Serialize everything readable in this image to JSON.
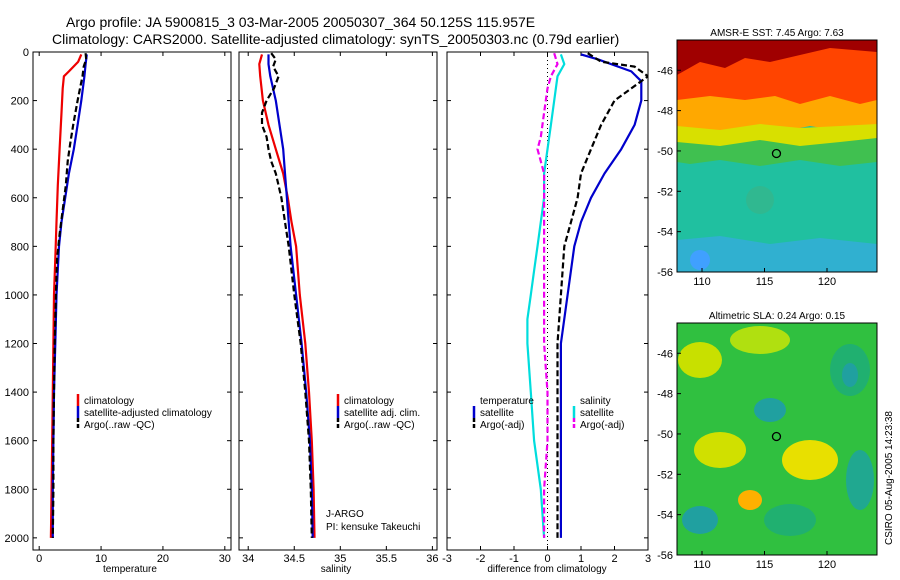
{
  "header": {
    "line1": "Argo profile: JA 5900815_3 03-Mar-2005 20050307_364 50.125S 115.957E",
    "line2": "Climatology: CARS2000. Satellite-adjusted climatology: synTS_20050303.nc (0.79d earlier)"
  },
  "side_stamp": "CSIRO 05-Aug-2005 14:23:38",
  "colors": {
    "climatology": "#ee0000",
    "satellite": "#0000cc",
    "argo": "#000000",
    "salinity_satellite": "#00dddd",
    "salinity_argo": "#ee00ee"
  },
  "chart_data": [
    {
      "id": "temperature",
      "type": "line",
      "xlabel": "temperature",
      "xlim": [
        -1,
        31
      ],
      "xticks": [
        0,
        10,
        20,
        30
      ],
      "ylim": [
        0,
        2050
      ],
      "yticks": [
        0,
        200,
        400,
        600,
        800,
        1000,
        1200,
        1400,
        1600,
        1800,
        2000
      ],
      "y_reversed": true,
      "legend": {
        "placement": "lower-center",
        "entries": [
          {
            "label": "climatology",
            "color": "#ee0000"
          },
          {
            "label": "satellite-adjusted climatology",
            "color": "#0000cc"
          },
          {
            "label": "Argo(..raw -QC)",
            "color": "#000000"
          }
        ]
      },
      "series": [
        {
          "name": "climatology",
          "color": "#ee0000",
          "dash": "",
          "points": [
            [
              6.8,
              10
            ],
            [
              6.3,
              40
            ],
            [
              4.8,
              80
            ],
            [
              4.0,
              100
            ],
            [
              3.8,
              150
            ],
            [
              3.6,
              250
            ],
            [
              3.3,
              400
            ],
            [
              3.0,
              550
            ],
            [
              2.8,
              700
            ],
            [
              2.6,
              850
            ],
            [
              2.4,
              1000
            ],
            [
              2.3,
              1200
            ],
            [
              2.2,
              1400
            ],
            [
              2.1,
              1600
            ],
            [
              2.0,
              1800
            ],
            [
              1.9,
              2000
            ]
          ]
        },
        {
          "name": "satellite-adjusted climatology",
          "color": "#0000cc",
          "dash": "",
          "points": [
            [
              7.7,
              10
            ],
            [
              7.5,
              50
            ],
            [
              7.3,
              100
            ],
            [
              6.8,
              200
            ],
            [
              6.2,
              300
            ],
            [
              5.6,
              400
            ],
            [
              4.8,
              500
            ],
            [
              4.2,
              600
            ],
            [
              3.6,
              700
            ],
            [
              3.2,
              800
            ],
            [
              2.8,
              1000
            ],
            [
              2.6,
              1200
            ],
            [
              2.4,
              1400
            ],
            [
              2.3,
              1600
            ],
            [
              2.2,
              1800
            ],
            [
              2.2,
              2000
            ]
          ]
        },
        {
          "name": "Argo(..raw -QC)",
          "color": "#000000",
          "dash": "6,3",
          "points": [
            [
              7.5,
              5
            ],
            [
              7.6,
              30
            ],
            [
              7.2,
              60
            ],
            [
              7.0,
              100
            ],
            [
              6.6,
              150
            ],
            [
              6.2,
              200
            ],
            [
              5.5,
              300
            ],
            [
              5.0,
              380
            ],
            [
              4.6,
              450
            ],
            [
              4.3,
              550
            ],
            [
              3.8,
              650
            ],
            [
              3.3,
              750
            ],
            [
              2.9,
              850
            ],
            [
              2.7,
              1000
            ],
            [
              2.5,
              1200
            ],
            [
              2.4,
              1400
            ],
            [
              2.3,
              1600
            ],
            [
              2.3,
              1800
            ],
            [
              2.2,
              2000
            ]
          ]
        }
      ]
    },
    {
      "id": "salinity",
      "type": "line",
      "xlabel": "salinity",
      "xlim": [
        33.9,
        36.05
      ],
      "xticks": [
        34,
        34.5,
        35,
        35.5,
        36
      ],
      "ylim": [
        0,
        2050
      ],
      "yticks": [
        0,
        200,
        400,
        600,
        800,
        1000,
        1200,
        1400,
        1600,
        1800,
        2000
      ],
      "y_reversed": true,
      "legend": {
        "placement": "lower-right",
        "entries": [
          {
            "label": "climatology",
            "color": "#ee0000"
          },
          {
            "label": "satellite adj. clim.",
            "color": "#0000cc"
          },
          {
            "label": "Argo(..raw -QC)",
            "color": "#000000"
          }
        ]
      },
      "annotation": {
        "line1": "J-ARGO",
        "line2": "PI: kensuke Takeuchi"
      },
      "series": [
        {
          "name": "climatology",
          "color": "#ee0000",
          "dash": "",
          "points": [
            [
              34.15,
              10
            ],
            [
              34.12,
              50
            ],
            [
              34.13,
              100
            ],
            [
              34.16,
              200
            ],
            [
              34.22,
              300
            ],
            [
              34.3,
              400
            ],
            [
              34.38,
              500
            ],
            [
              34.43,
              600
            ],
            [
              34.47,
              700
            ],
            [
              34.52,
              800
            ],
            [
              34.56,
              1000
            ],
            [
              34.62,
              1200
            ],
            [
              34.66,
              1400
            ],
            [
              34.69,
              1600
            ],
            [
              34.71,
              1800
            ],
            [
              34.72,
              2000
            ]
          ]
        },
        {
          "name": "satellite adj. clim.",
          "color": "#0000cc",
          "dash": "",
          "points": [
            [
              34.22,
              10
            ],
            [
              34.22,
              50
            ],
            [
              34.24,
              100
            ],
            [
              34.3,
              200
            ],
            [
              34.34,
              300
            ],
            [
              34.38,
              400
            ],
            [
              34.4,
              500
            ],
            [
              34.42,
              600
            ],
            [
              34.44,
              700
            ],
            [
              34.46,
              800
            ],
            [
              34.52,
              1000
            ],
            [
              34.58,
              1200
            ],
            [
              34.63,
              1400
            ],
            [
              34.67,
              1600
            ],
            [
              34.69,
              1800
            ],
            [
              34.7,
              2000
            ]
          ]
        },
        {
          "name": "Argo(..raw -QC)",
          "color": "#000000",
          "dash": "6,3",
          "points": [
            [
              34.25,
              5
            ],
            [
              34.3,
              30
            ],
            [
              34.27,
              60
            ],
            [
              34.33,
              100
            ],
            [
              34.28,
              150
            ],
            [
              34.2,
              200
            ],
            [
              34.15,
              250
            ],
            [
              34.15,
              300
            ],
            [
              34.2,
              350
            ],
            [
              34.22,
              400
            ],
            [
              34.25,
              450
            ],
            [
              34.3,
              500
            ],
            [
              34.33,
              550
            ],
            [
              34.36,
              600
            ],
            [
              34.4,
              700
            ],
            [
              34.44,
              800
            ],
            [
              34.5,
              1000
            ],
            [
              34.57,
              1200
            ],
            [
              34.62,
              1400
            ],
            [
              34.66,
              1600
            ],
            [
              34.68,
              1800
            ],
            [
              34.69,
              2000
            ]
          ]
        }
      ]
    },
    {
      "id": "difference",
      "type": "line",
      "xlabel": "difference from climatology",
      "xlim": [
        -3,
        3
      ],
      "xticks": [
        -3,
        -2,
        -1,
        0,
        1,
        2,
        3
      ],
      "ylim": [
        0,
        2050
      ],
      "yticks": [
        0,
        200,
        400,
        600,
        800,
        1000,
        1200,
        1400,
        1600,
        1800,
        2000
      ],
      "y_reversed": true,
      "zero_line": true,
      "legend": {
        "placement": "lower-center",
        "groups": [
          {
            "title": "temperature",
            "entries": [
              {
                "label": "satellite",
                "color": "#0000cc",
                "dash": ""
              },
              {
                "label": "Argo(-adj)",
                "color": "#000000",
                "dash": "6,3"
              }
            ]
          },
          {
            "title": "salinity",
            "entries": [
              {
                "label": "satellite",
                "color": "#00dddd",
                "dash": ""
              },
              {
                "label": "Argo(-adj)",
                "color": "#ee00ee",
                "dash": "6,3"
              }
            ]
          }
        ]
      },
      "series": [
        {
          "name": "temperature satellite",
          "color": "#0000cc",
          "dash": "",
          "points": [
            [
              1.0,
              10
            ],
            [
              1.5,
              30
            ],
            [
              2.5,
              80
            ],
            [
              2.8,
              120
            ],
            [
              2.8,
              200
            ],
            [
              2.6,
              300
            ],
            [
              2.2,
              400
            ],
            [
              1.7,
              500
            ],
            [
              1.3,
              600
            ],
            [
              1.0,
              700
            ],
            [
              0.8,
              800
            ],
            [
              0.6,
              1000
            ],
            [
              0.4,
              1200
            ],
            [
              0.4,
              1400
            ],
            [
              0.4,
              1600
            ],
            [
              0.4,
              1800
            ],
            [
              0.4,
              2000
            ]
          ]
        },
        {
          "name": "temperature Argo(-adj)",
          "color": "#000000",
          "dash": "6,3",
          "points": [
            [
              1.2,
              5
            ],
            [
              1.6,
              40
            ],
            [
              2.6,
              60
            ],
            [
              3.0,
              100
            ],
            [
              2.5,
              150
            ],
            [
              2.0,
              200
            ],
            [
              1.6,
              300
            ],
            [
              1.3,
              400
            ],
            [
              1.0,
              500
            ],
            [
              0.9,
              600
            ],
            [
              0.7,
              700
            ],
            [
              0.5,
              800
            ],
            [
              0.4,
              1000
            ],
            [
              0.3,
              1200
            ],
            [
              0.3,
              1400
            ],
            [
              0.3,
              1600
            ],
            [
              0.3,
              1800
            ],
            [
              0.3,
              2000
            ]
          ]
        },
        {
          "name": "salinity satellite",
          "color": "#00dddd",
          "dash": "",
          "points": [
            [
              0.4,
              10
            ],
            [
              0.5,
              50
            ],
            [
              0.3,
              100
            ],
            [
              0.2,
              200
            ],
            [
              0.1,
              300
            ],
            [
              0.0,
              400
            ],
            [
              -0.1,
              500
            ],
            [
              -0.1,
              600
            ],
            [
              -0.2,
              700
            ],
            [
              -0.3,
              800
            ],
            [
              -0.4,
              900
            ],
            [
              -0.5,
              1000
            ],
            [
              -0.6,
              1100
            ],
            [
              -0.6,
              1200
            ],
            [
              -0.5,
              1400
            ],
            [
              -0.4,
              1600
            ],
            [
              -0.2,
              1800
            ],
            [
              -0.1,
              2000
            ]
          ]
        },
        {
          "name": "salinity Argo(-adj)",
          "color": "#ee00ee",
          "dash": "6,3",
          "points": [
            [
              0.2,
              5
            ],
            [
              0.3,
              50
            ],
            [
              0.1,
              100
            ],
            [
              0.0,
              150
            ],
            [
              -0.1,
              250
            ],
            [
              -0.2,
              350
            ],
            [
              -0.3,
              400
            ],
            [
              -0.2,
              450
            ],
            [
              -0.1,
              500
            ],
            [
              -0.1,
              600
            ],
            [
              -0.1,
              700
            ],
            [
              -0.1,
              800
            ],
            [
              -0.1,
              1000
            ],
            [
              -0.1,
              1200
            ],
            [
              0.0,
              1400
            ],
            [
              0.0,
              1600
            ],
            [
              -0.1,
              1800
            ],
            [
              -0.1,
              2000
            ]
          ]
        }
      ]
    },
    {
      "id": "sst_map",
      "type": "heatmap",
      "title": "AMSR-E SST: 7.45 Argo: 7.63",
      "xlim": [
        108,
        124
      ],
      "ylim": [
        -56,
        -44.5
      ],
      "xticks": [
        110,
        115,
        120
      ],
      "yticks": [
        -46,
        -48,
        -50,
        -52,
        -54,
        -56
      ],
      "marker": [
        115.957,
        -50.125
      ],
      "colormap": "jet, warm north / cool south"
    },
    {
      "id": "sla_map",
      "type": "heatmap",
      "title": "Altimetric SLA: 0.24 Argo: 0.15",
      "xlim": [
        108,
        124
      ],
      "ylim": [
        -56,
        -44.5
      ],
      "xticks": [
        110,
        115,
        120
      ],
      "yticks": [
        -46,
        -48,
        -50,
        -52,
        -54,
        -56
      ],
      "marker": [
        115.957,
        -50.125
      ],
      "colormap": "jet, mostly green with cyan and yellow patches"
    }
  ]
}
